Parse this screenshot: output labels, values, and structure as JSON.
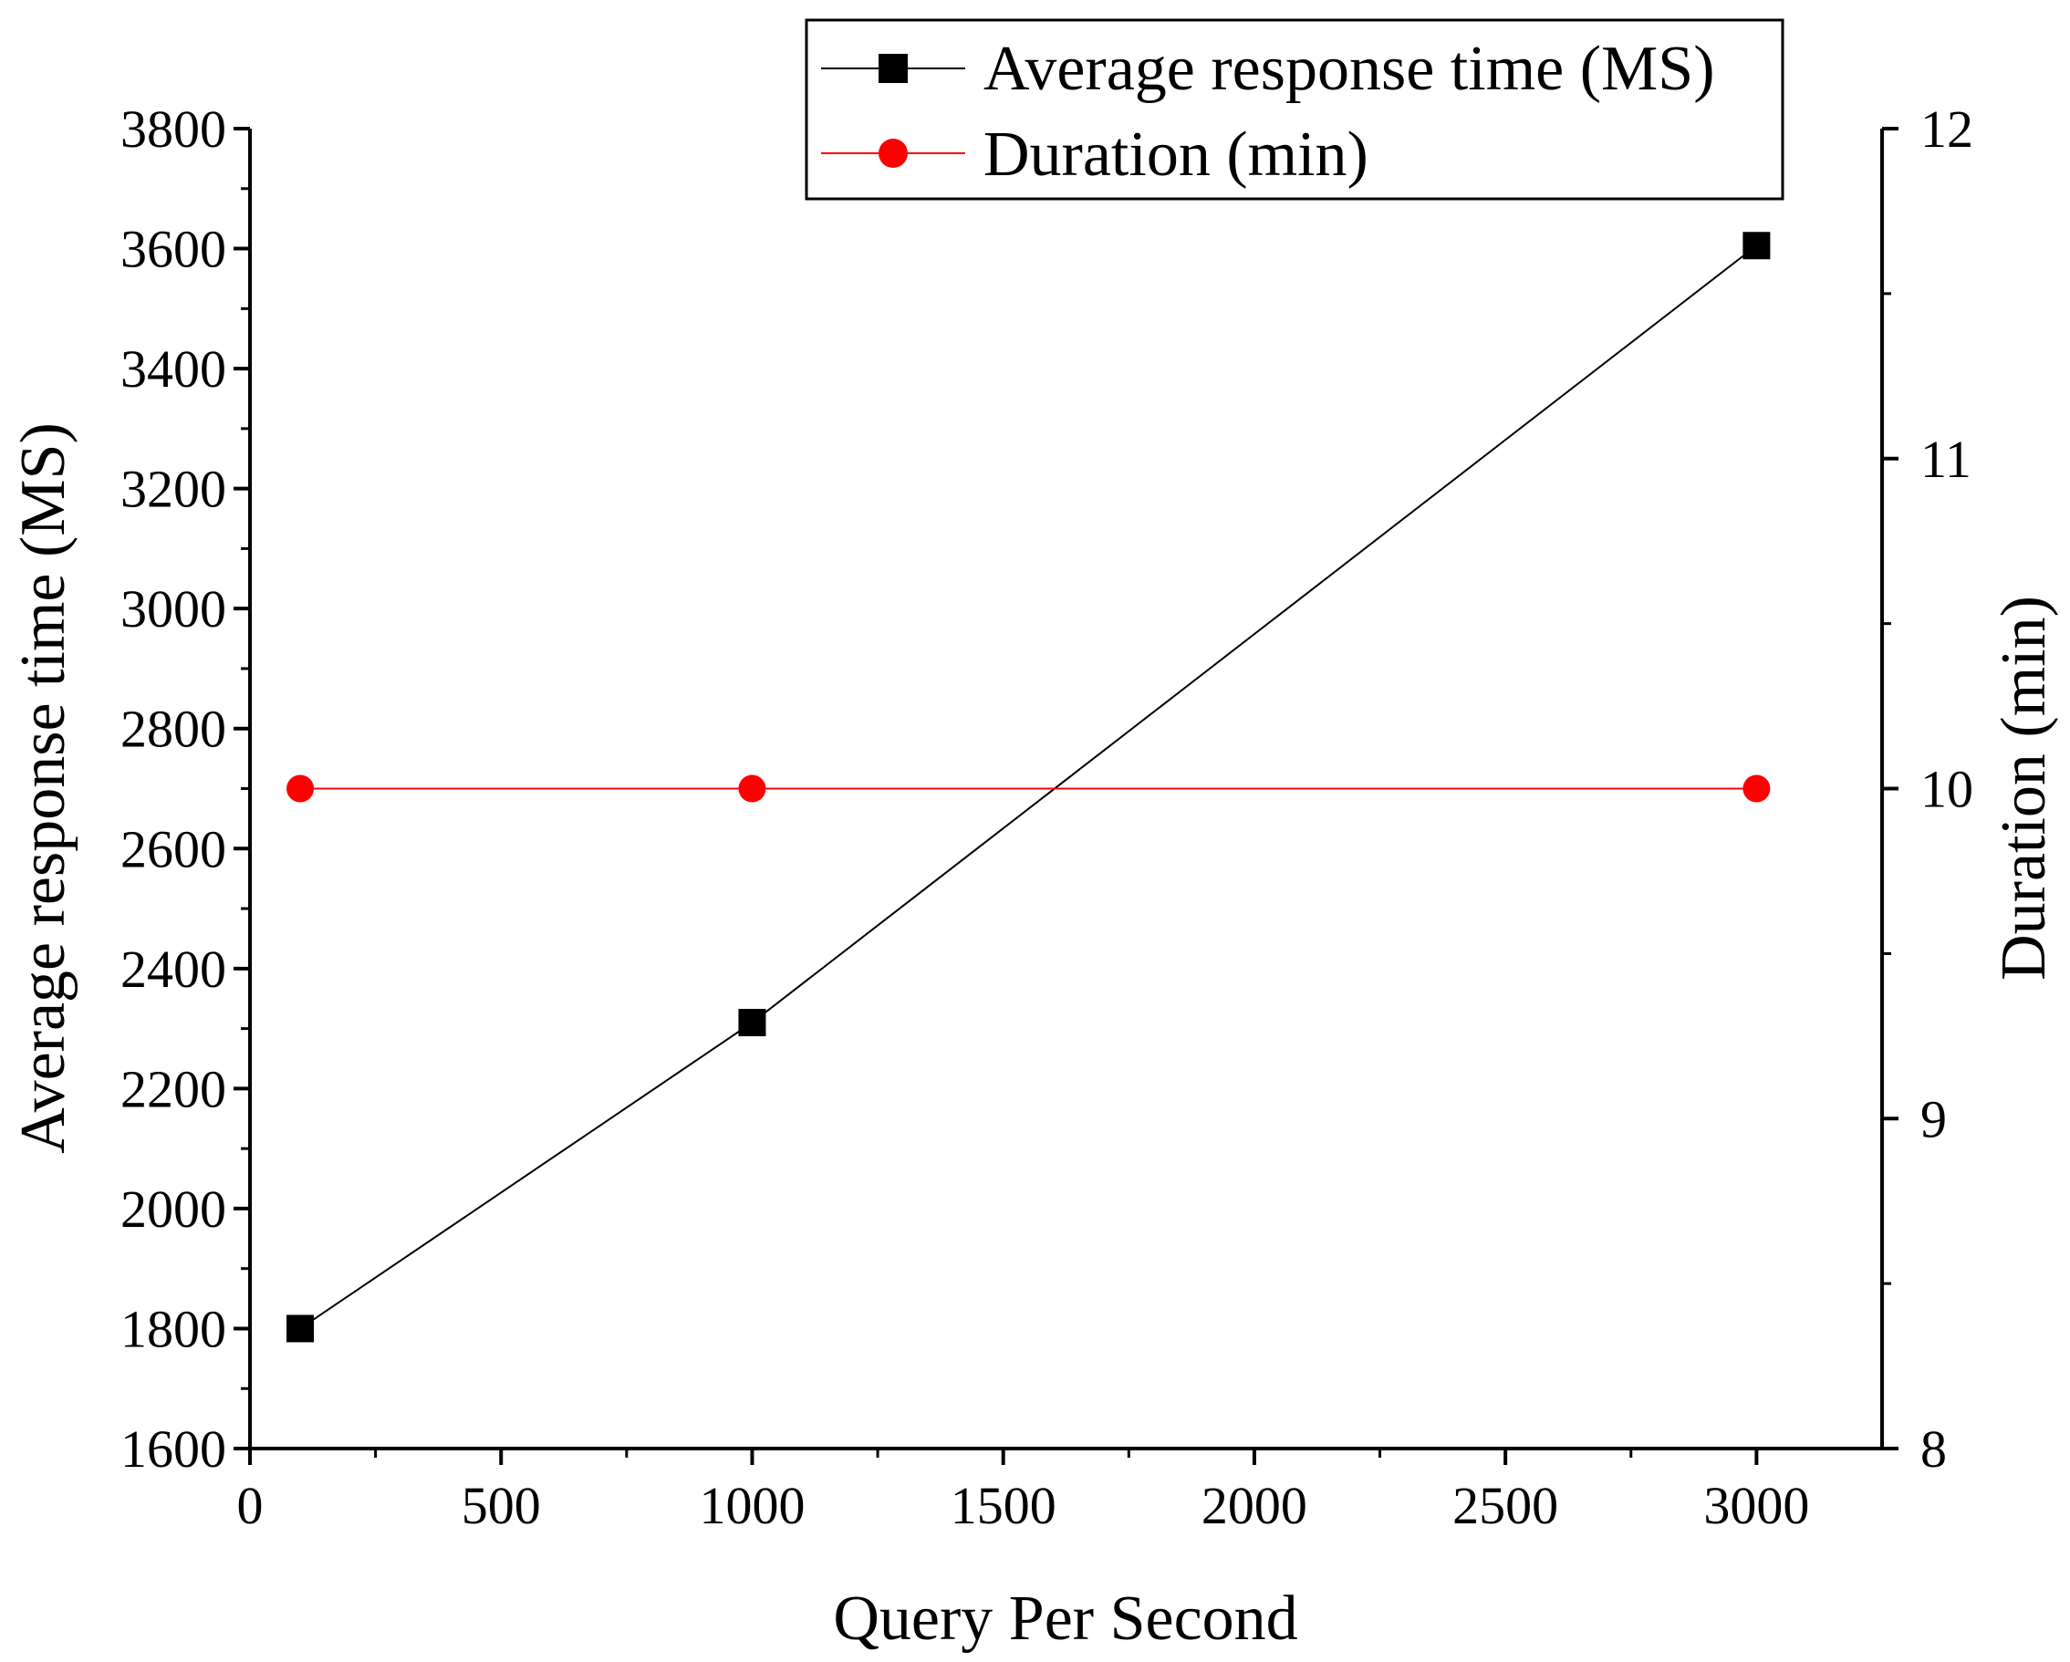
{
  "chart_data": {
    "type": "line",
    "x": [
      100,
      1000,
      3000
    ],
    "xlabel": "Query Per Second",
    "xlim": [
      0,
      3250
    ],
    "xticks": [
      0,
      500,
      1000,
      1500,
      2000,
      2500,
      3000
    ],
    "xtick_labels": [
      "0",
      "500",
      "1000",
      "1500",
      "2000",
      "2500",
      "3000"
    ],
    "ylabel": "Average response time (MS)",
    "ylim": [
      1600,
      3800
    ],
    "yticks": [
      1600,
      1800,
      2000,
      2200,
      2400,
      2600,
      2800,
      3000,
      3200,
      3400,
      3600,
      3800
    ],
    "ytick_labels": [
      "1600",
      "1800",
      "2000",
      "2200",
      "2400",
      "2600",
      "2800",
      "3000",
      "3200",
      "3400",
      "3600",
      "3800"
    ],
    "y2label": "Duration (min)",
    "y2lim": [
      8,
      12
    ],
    "y2ticks": [
      8,
      9,
      10,
      11,
      12
    ],
    "y2tick_labels": [
      "8",
      "9",
      "10",
      "11",
      "12"
    ],
    "series": [
      {
        "name": "Average response time (MS)",
        "axis": "left",
        "marker": "square",
        "color": "#000000",
        "values": [
          1800,
          2310,
          3605
        ]
      },
      {
        "name": "Duration (min)",
        "axis": "right",
        "marker": "circle",
        "color": "#ff0000",
        "values": [
          10,
          10,
          10
        ]
      }
    ],
    "legend": {
      "placement": "top-right"
    },
    "grid": false
  }
}
